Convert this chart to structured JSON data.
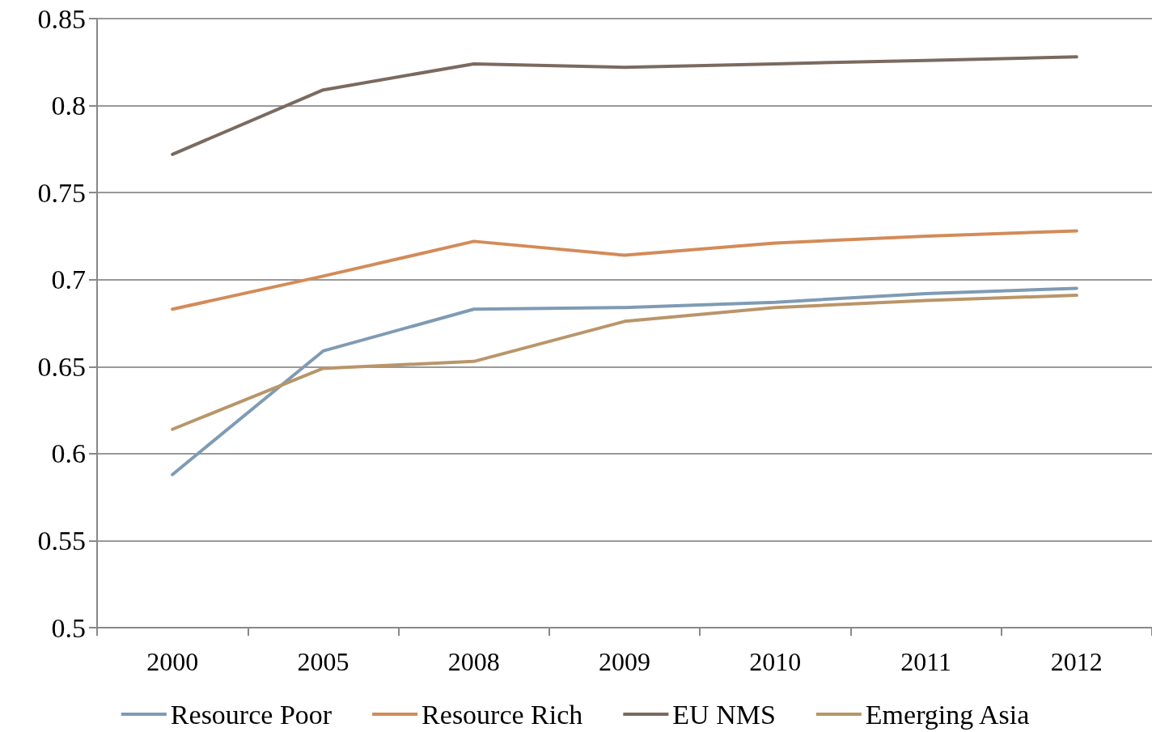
{
  "chart_data": {
    "type": "line",
    "categories": [
      "2000",
      "2005",
      "2008",
      "2009",
      "2010",
      "2011",
      "2012"
    ],
    "series": [
      {
        "name": "Resource Poor",
        "color": "#7f9bb4",
        "values": [
          0.588,
          0.659,
          0.683,
          0.684,
          0.687,
          0.692,
          0.695
        ]
      },
      {
        "name": "Resource Rich",
        "color": "#d38b58",
        "values": [
          0.683,
          0.702,
          0.722,
          0.714,
          0.721,
          0.725,
          0.728
        ]
      },
      {
        "name": "EU NMS",
        "color": "#7a6a5f",
        "values": [
          0.772,
          0.809,
          0.824,
          0.822,
          0.824,
          0.826,
          0.828
        ]
      },
      {
        "name": "Emerging Asia",
        "color": "#b99569",
        "values": [
          0.614,
          0.649,
          0.653,
          0.676,
          0.684,
          0.688,
          0.691
        ]
      }
    ],
    "ylim": [
      0.5,
      0.85
    ],
    "yticks": [
      0.5,
      0.55,
      0.6,
      0.65,
      0.7,
      0.75,
      0.8,
      0.85
    ],
    "grid": "y",
    "legend": "bottom",
    "marker": "none",
    "line_style": "solid"
  }
}
